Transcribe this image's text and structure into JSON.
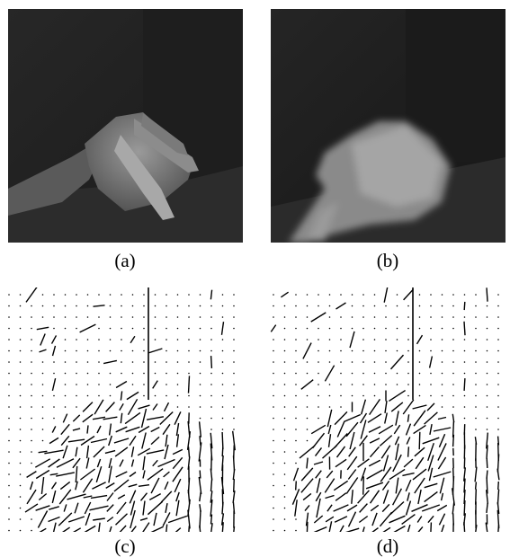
{
  "figure": {
    "panels": [
      {
        "id": "a",
        "caption": "(a)"
      },
      {
        "id": "b",
        "caption": "(b)"
      },
      {
        "id": "c",
        "caption": "(c)"
      },
      {
        "id": "d",
        "caption": "(d)"
      }
    ]
  }
}
